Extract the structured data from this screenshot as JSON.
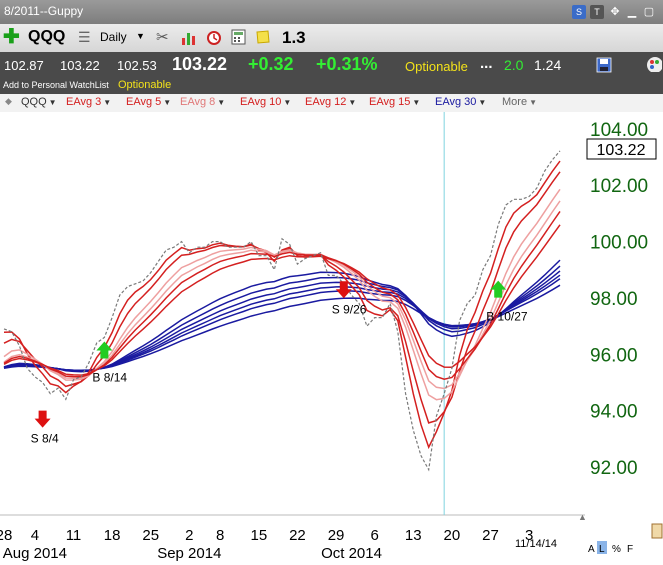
{
  "window": {
    "title": "8/2011--Guppy"
  },
  "toolbar": {
    "symbol": "QQQ",
    "period": "Daily",
    "value": "1.3",
    "icons": [
      "add-icon",
      "list-icon",
      "tools-icon",
      "bar-chart-icon",
      "alarm-clock-icon",
      "calculator-icon",
      "note-icon"
    ]
  },
  "quote": {
    "open": "102.87",
    "high": "103.22",
    "low": "102.53",
    "last": "103.22",
    "change": "+0.32",
    "change_pct": "+0.31%",
    "optionable": "Optionable",
    "ellipsis": "...",
    "v1": "2.0",
    "v2": "1.24"
  },
  "watchlist": {
    "label": "Add to Personal WatchList",
    "optionable": "Optionable"
  },
  "indicators": [
    {
      "label": "QQQ",
      "color": "#333333"
    },
    {
      "label": "EAvg 3",
      "color": "#d42020"
    },
    {
      "label": "EAvg 5",
      "color": "#d42020"
    },
    {
      "label": "EAvg 8",
      "color": "#e07878"
    },
    {
      "label": "EAvg 10",
      "color": "#d42020"
    },
    {
      "label": "EAvg 12",
      "color": "#d42020"
    },
    {
      "label": "EAvg 15",
      "color": "#d42020"
    },
    {
      "label": "EAvg 30",
      "color": "#1a1aa0"
    },
    {
      "label": "More",
      "color": "#666666"
    }
  ],
  "footer": {
    "date": "11/14/14",
    "a": "A",
    "l": "L",
    "pct": "%",
    "f": "F"
  },
  "colors": {
    "price_axis": "#116611",
    "red_ema": "#d42020",
    "light_ema": "#eea0a0",
    "blue_ema": "#1a1aa0",
    "vline": "#7fd4e0",
    "up_arrow": "#22cc22",
    "down_arrow": "#dd1111"
  },
  "chart_data": {
    "type": "line",
    "title": "",
    "ylim": [
      90.4,
      104.6
    ],
    "price_label": "103.22",
    "y_ticks": [
      92,
      94,
      96,
      98,
      100,
      102,
      104
    ],
    "y_tick_labels": [
      "92.00",
      "94.00",
      "96.00",
      "98.00",
      "100.00",
      "102.00",
      "104.00"
    ],
    "x_ticks": [
      {
        "i": 0,
        "label": "28"
      },
      {
        "i": 4,
        "label": "4"
      },
      {
        "i": 9,
        "label": "11"
      },
      {
        "i": 14,
        "label": "18"
      },
      {
        "i": 19,
        "label": "25"
      },
      {
        "i": 24,
        "label": "2"
      },
      {
        "i": 28,
        "label": "8"
      },
      {
        "i": 33,
        "label": "15"
      },
      {
        "i": 38,
        "label": "22"
      },
      {
        "i": 43,
        "label": "29"
      },
      {
        "i": 48,
        "label": "6"
      },
      {
        "i": 53,
        "label": "13"
      },
      {
        "i": 58,
        "label": "20"
      },
      {
        "i": 63,
        "label": "27"
      },
      {
        "i": 68,
        "label": "3"
      }
    ],
    "month_labels": [
      {
        "i": 4,
        "label": "Aug 2014"
      },
      {
        "i": 24,
        "label": "Sep 2014"
      },
      {
        "i": 45,
        "label": "Oct 2014"
      }
    ],
    "vline_index": 57,
    "price": [
      96.9,
      96.8,
      96.3,
      95.5,
      95.2,
      95.0,
      94.6,
      94.8,
      94.4,
      95.1,
      95.2,
      95.7,
      96.4,
      96.6,
      97.3,
      98.1,
      98.4,
      98.5,
      98.6,
      98.9,
      99.3,
      99.7,
      99.8,
      100.0,
      99.6,
      99.8,
      99.8,
      100.0,
      100.0,
      99.8,
      99.8,
      99.8,
      100.0,
      99.5,
      99.5,
      99.0,
      100.1,
      99.9,
      99.2,
      99.4,
      99.5,
      99.6,
      98.8,
      98.8,
      98.5,
      98.1,
      97.8,
      97.0,
      97.3,
      97.3,
      97.8,
      96.8,
      94.6,
      93.3,
      92.4,
      91.9,
      93.8,
      94.6,
      95.5,
      97.2,
      97.8,
      98.1,
      99.0,
      99.5,
      100.6,
      101.3,
      101.5,
      101.5,
      101.6,
      101.9,
      102.5,
      102.9,
      103.22
    ],
    "series": [
      {
        "name": "QQQ",
        "values": "price",
        "style": "dashed"
      },
      {
        "name": "EAvg 3",
        "period": 3
      },
      {
        "name": "EAvg 5",
        "period": 5
      },
      {
        "name": "EAvg 8",
        "period": 8
      },
      {
        "name": "EAvg 10",
        "period": 10
      },
      {
        "name": "EAvg 12",
        "period": 12
      },
      {
        "name": "EAvg 15",
        "period": 15
      },
      {
        "name": "EAvg 30",
        "period": 30
      },
      {
        "name": "",
        "period": 35
      },
      {
        "name": "",
        "period": 40
      },
      {
        "name": "",
        "period": 45
      },
      {
        "name": "",
        "period": 50
      },
      {
        "name": "",
        "period": 60
      }
    ],
    "annotations": [
      {
        "label": "S 8/4",
        "i": 5,
        "type": "sell"
      },
      {
        "label": "B 8/14",
        "i": 13,
        "type": "buy"
      },
      {
        "label": "S 9/26",
        "i": 44,
        "type": "sell"
      },
      {
        "label": "B 10/27",
        "i": 64,
        "type": "buy"
      }
    ]
  }
}
